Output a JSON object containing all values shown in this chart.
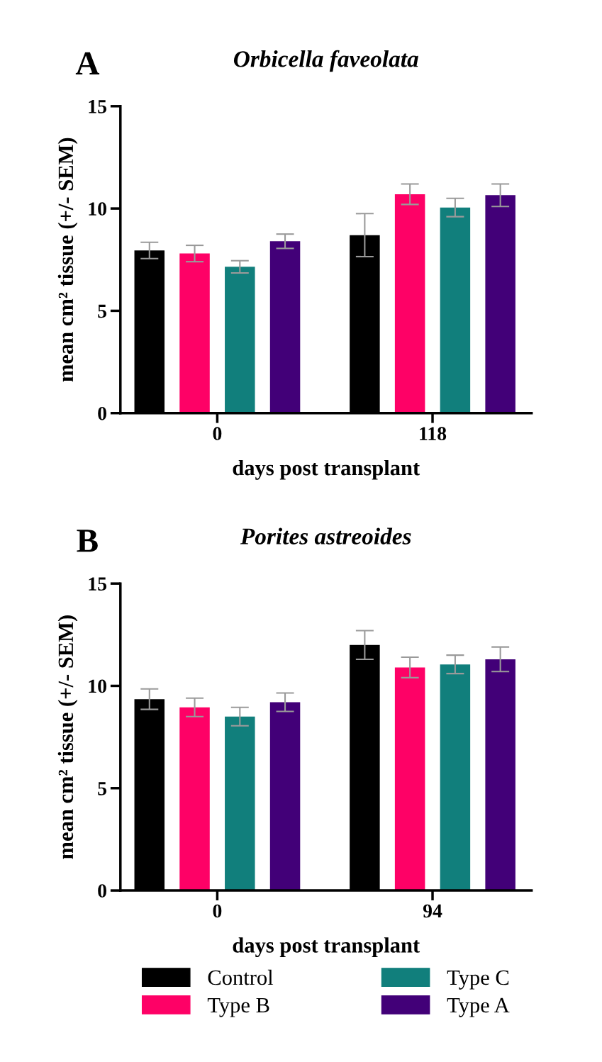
{
  "chart_data": [
    {
      "type": "bar",
      "title": "Orbicella faveolata",
      "xlabel": "days post transplant",
      "ylabel": "mean cm² tissue (+/- SEM)",
      "annotations": [
        "A"
      ],
      "categories": [
        "0",
        "118"
      ],
      "ylim": [
        0,
        15
      ],
      "yticks": [
        0,
        5,
        10,
        15
      ],
      "grid": false,
      "series": [
        {
          "color": "#000000",
          "values": [
            7.95,
            8.7
          ],
          "errors": [
            0.4,
            1.05
          ]
        },
        {
          "color": "#fe0166",
          "values": [
            7.8,
            10.7
          ],
          "errors": [
            0.4,
            0.5
          ]
        },
        {
          "color": "#117f7c",
          "values": [
            7.15,
            10.05
          ],
          "errors": [
            0.3,
            0.45
          ]
        },
        {
          "color": "#420078",
          "values": [
            8.4,
            10.65
          ],
          "errors": [
            0.35,
            0.55
          ]
        }
      ]
    },
    {
      "type": "bar",
      "title": "Porites astreoides",
      "xlabel": "days post transplant",
      "ylabel": "mean cm² tissue (+/- SEM)",
      "annotations": [
        "B"
      ],
      "categories": [
        "0",
        "94"
      ],
      "ylim": [
        0,
        15
      ],
      "yticks": [
        0,
        5,
        10,
        15
      ],
      "grid": false,
      "legend": "bottom",
      "series": [
        {
          "name": "Control",
          "color": "#000000",
          "values": [
            9.35,
            12.0
          ],
          "errors": [
            0.5,
            0.7
          ]
        },
        {
          "name": "Type B",
          "color": "#fe0166",
          "values": [
            8.95,
            10.9
          ],
          "errors": [
            0.45,
            0.5
          ]
        },
        {
          "name": "Type C",
          "color": "#117f7c",
          "values": [
            8.5,
            11.05
          ],
          "errors": [
            0.45,
            0.45
          ]
        },
        {
          "name": "Type A",
          "color": "#420078",
          "values": [
            9.2,
            11.3
          ],
          "errors": [
            0.45,
            0.6
          ]
        }
      ]
    }
  ]
}
